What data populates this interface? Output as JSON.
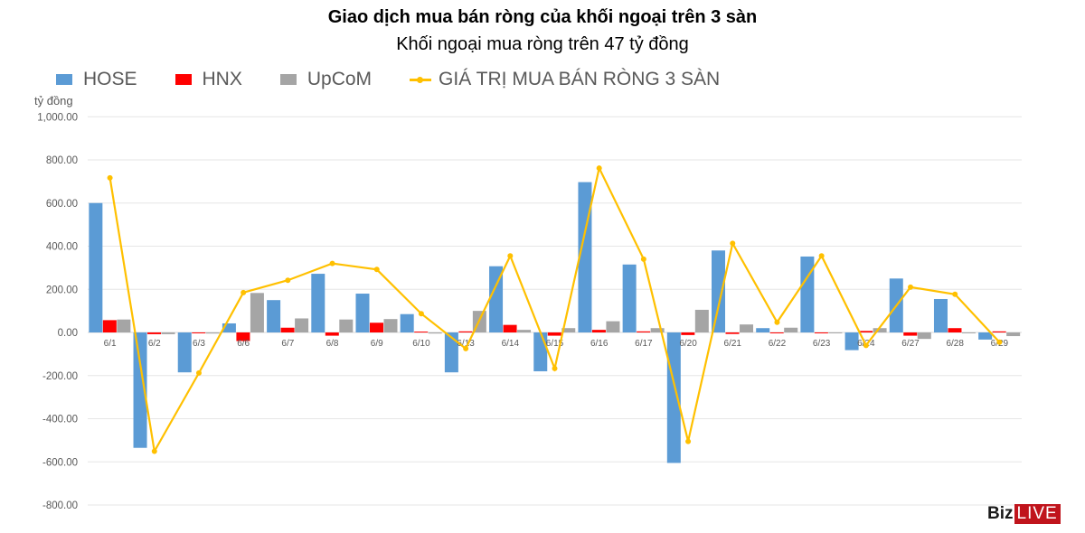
{
  "header": {
    "title": "Giao dịch mua bán ròng của khối ngoại trên 3 sàn",
    "subtitle": "Khối ngoại mua ròng trên 47 tỷ đồng"
  },
  "legend": [
    {
      "label": "HOSE",
      "color": "#5b9bd5",
      "kind": "bar"
    },
    {
      "label": "HNX",
      "color": "#ff0000",
      "kind": "bar"
    },
    {
      "label": "UpCoM",
      "color": "#a5a5a5",
      "kind": "bar"
    },
    {
      "label": "GIÁ TRỊ MUA BÁN RÒNG 3 SÀN",
      "color": "#ffc000",
      "kind": "line"
    }
  ],
  "y_unit": "tỷ đồng",
  "logo": {
    "biz": "Biz",
    "live": "LIVE"
  },
  "chart_data": {
    "type": "bar",
    "title": "Giao dịch mua bán ròng của khối ngoại trên 3 sàn",
    "subtitle": "Khối ngoại mua ròng trên 47 tỷ đồng",
    "xlabel": "",
    "ylabel": "tỷ đồng",
    "ylim": [
      -800,
      1000
    ],
    "yticks": [
      "1,000.00",
      "800.00",
      "600.00",
      "400.00",
      "200.00",
      "0.00",
      "-200.00",
      "-400.00",
      "-600.00",
      "-800.00"
    ],
    "ytick_values": [
      1000,
      800,
      600,
      400,
      200,
      0,
      -200,
      -400,
      -600,
      -800
    ],
    "grid": true,
    "legend_position": "top",
    "categories": [
      "6/1",
      "6/2",
      "6/3",
      "6/6",
      "6/7",
      "6/8",
      "6/9",
      "6/10",
      "6/13",
      "6/14",
      "6/15",
      "6/16",
      "6/17",
      "6/20",
      "6/21",
      "6/22",
      "6/23",
      "6/24",
      "6/27",
      "6/28",
      "6/29"
    ],
    "series": [
      {
        "name": "HOSE",
        "type": "bar",
        "color": "#5b9bd5",
        "values": [
          600,
          -535,
          -185,
          42,
          150,
          272,
          180,
          85,
          -185,
          307,
          -180,
          697,
          315,
          -605,
          380,
          20,
          352,
          -82,
          250,
          155,
          -33
        ]
      },
      {
        "name": "HNX",
        "type": "bar",
        "color": "#ff0000",
        "values": [
          57,
          -8,
          -3,
          -40,
          22,
          -15,
          45,
          4,
          5,
          35,
          -15,
          12,
          5,
          -12,
          -7,
          -3,
          -3,
          7,
          -15,
          20,
          5
        ]
      },
      {
        "name": "UpCoM",
        "type": "bar",
        "color": "#a5a5a5",
        "values": [
          60,
          -8,
          -5,
          183,
          65,
          60,
          62,
          -5,
          100,
          12,
          20,
          52,
          20,
          105,
          37,
          22,
          -3,
          20,
          -30,
          -3,
          -17
        ]
      },
      {
        "name": "GIÁ TRỊ MUA BÁN RÒNG 3 SÀN",
        "type": "line",
        "color": "#ffc000",
        "values": [
          717,
          -551,
          -188,
          185,
          242,
          320,
          292,
          87,
          -75,
          355,
          -167,
          762,
          340,
          -505,
          413,
          47,
          355,
          -60,
          210,
          177,
          -45
        ]
      }
    ]
  }
}
